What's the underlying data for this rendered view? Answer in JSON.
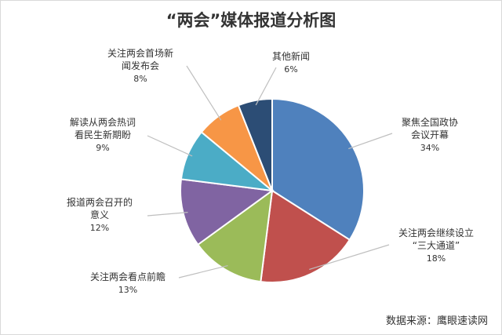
{
  "chart_data": {
    "type": "pie",
    "title": "“两会”媒体报道分析图",
    "slices": [
      {
        "label_lines": [
          "聚焦全国政协",
          "会议开幕"
        ],
        "value": 34,
        "pct": "34%",
        "color": "#4f81bd"
      },
      {
        "label_lines": [
          "关注两会继续设立",
          "“三大通道”"
        ],
        "value": 18,
        "pct": "18%",
        "color": "#c0504d"
      },
      {
        "label_lines": [
          "关注两会看点前瞻"
        ],
        "value": 13,
        "pct": "13%",
        "color": "#9bbb59"
      },
      {
        "label_lines": [
          "报道两会召开的",
          "意义"
        ],
        "value": 12,
        "pct": "12%",
        "color": "#8064a2"
      },
      {
        "label_lines": [
          "解读从两会热词",
          "看民生新期盼"
        ],
        "value": 9,
        "pct": "9%",
        "color": "#4bacc6"
      },
      {
        "label_lines": [
          "关注两会首场新",
          "闻发布会"
        ],
        "value": 8,
        "pct": "8%",
        "color": "#f79646"
      },
      {
        "label_lines": [
          "其他新闻"
        ],
        "value": 6,
        "pct": "6%",
        "color": "#2c4d75"
      }
    ],
    "source": "数据来源：鹰眼速读网"
  }
}
